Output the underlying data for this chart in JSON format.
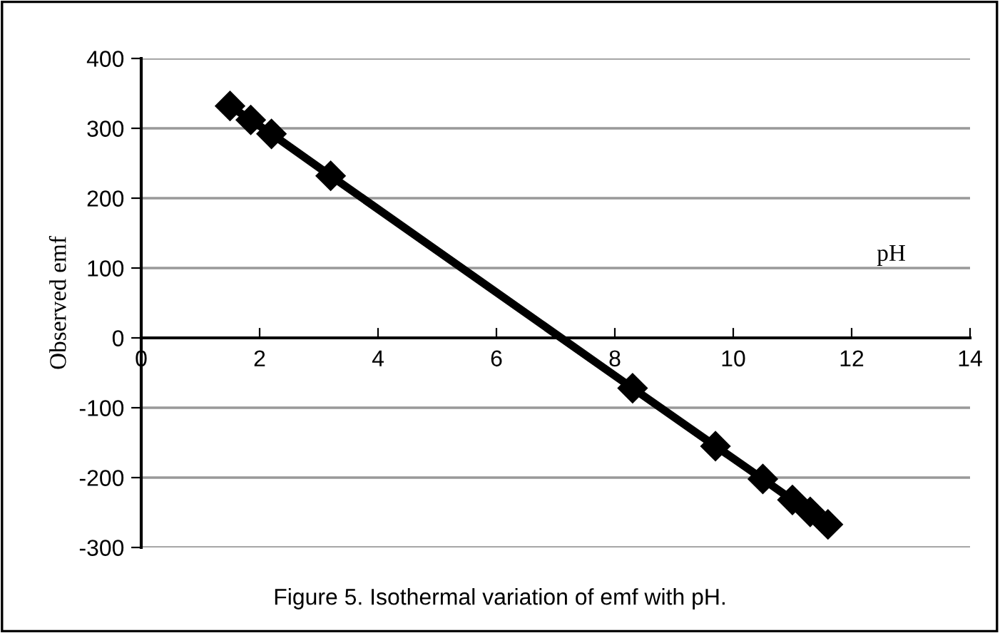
{
  "chart_data": {
    "type": "line",
    "x": [
      1.5,
      1.85,
      2.2,
      3.2,
      8.3,
      9.7,
      10.5,
      11.0,
      11.3,
      11.6
    ],
    "series": [
      {
        "color": "#000000",
        "values": [
          332,
          312,
          292,
          232,
          -72,
          -155,
          -202,
          -232,
          -249,
          -267
        ]
      }
    ],
    "xlabel": "pH",
    "ylabel": "Observed emf",
    "xlim": [
      0,
      14
    ],
    "xticks": [
      0,
      2,
      4,
      6,
      8,
      10,
      12,
      14
    ],
    "ylim": [
      -300,
      400
    ],
    "yticks": [
      -300,
      -200,
      -100,
      0,
      100,
      200,
      300,
      400
    ],
    "grid": "y",
    "legend": false,
    "marker": "diamond",
    "line_style": "solid",
    "annotations": [
      "Figure 5. Isothermal variation of emf with pH."
    ]
  }
}
